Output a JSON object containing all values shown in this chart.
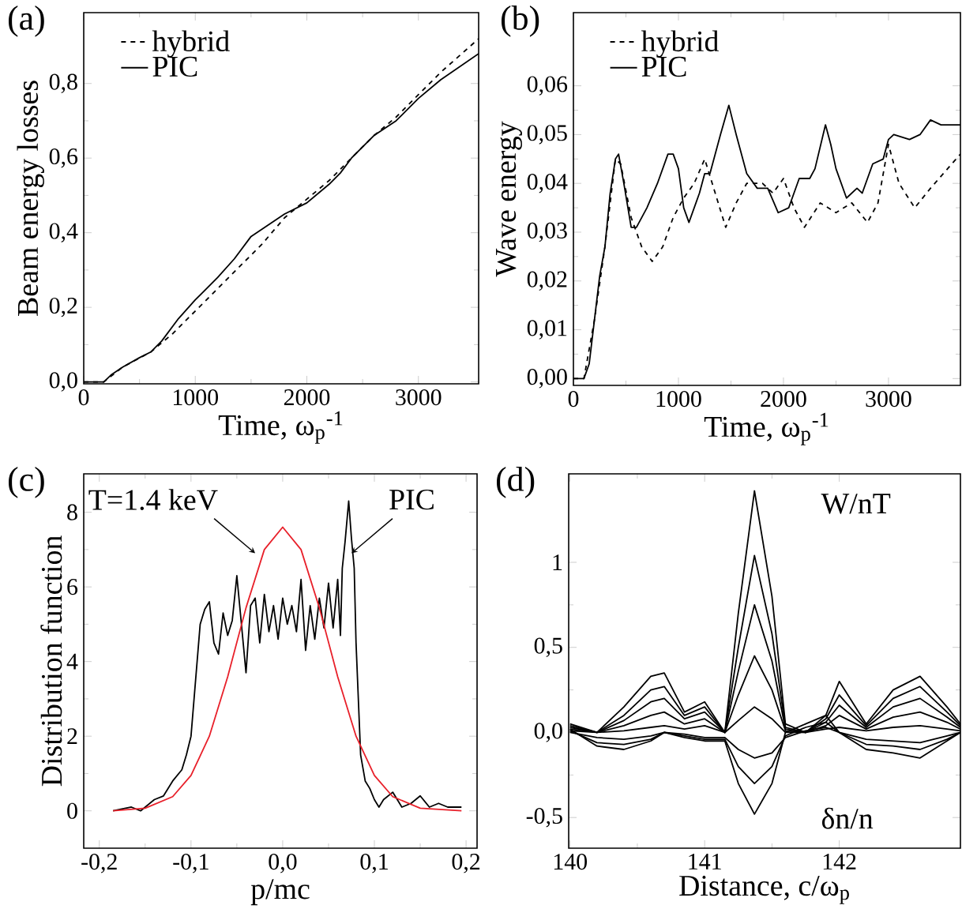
{
  "chart_data": [
    {
      "type": "line",
      "title": "(a)",
      "xlabel": "Time, ω$_{p}$$^{-1}$",
      "ylabel": "Beam energy losses",
      "xlim": [
        0,
        3540
      ],
      "ylim": [
        -0.005,
        0.99
      ],
      "xticks": [
        0,
        1000,
        2000,
        3000
      ],
      "yticks": [
        {
          "value": 0,
          "label": "0,0"
        },
        {
          "value": 0.2,
          "label": "0,2"
        },
        {
          "value": 0.4,
          "label": "0,4"
        },
        {
          "value": 0.6,
          "label": "0,6"
        },
        {
          "value": 0.8,
          "label": "0,8"
        }
      ],
      "legend": "top left",
      "series": [
        {
          "name": "hybrid",
          "color": "#000000",
          "line_style": "dashed",
          "x": [
            0,
            180,
            350,
            600,
            800,
            1000,
            1200,
            1400,
            1600,
            1800,
            2000,
            2200,
            2400,
            2600,
            2800,
            3000,
            3200,
            3540
          ],
          "values": [
            0,
            0,
            0.04,
            0.08,
            0.13,
            0.19,
            0.25,
            0.31,
            0.37,
            0.44,
            0.49,
            0.54,
            0.6,
            0.66,
            0.71,
            0.77,
            0.83,
            0.92
          ]
        },
        {
          "name": "PIC",
          "color": "#000000",
          "line_style": "solid",
          "x": [
            0,
            180,
            250,
            350,
            500,
            600,
            700,
            850,
            1000,
            1200,
            1350,
            1500,
            1600,
            1800,
            2000,
            2200,
            2300,
            2400,
            2600,
            2800,
            3000,
            3200,
            3540
          ],
          "values": [
            0,
            0,
            0.02,
            0.04,
            0.065,
            0.08,
            0.11,
            0.17,
            0.22,
            0.28,
            0.33,
            0.39,
            0.41,
            0.45,
            0.48,
            0.53,
            0.56,
            0.6,
            0.66,
            0.7,
            0.76,
            0.81,
            0.88
          ]
        }
      ]
    },
    {
      "type": "line",
      "title": "(b)",
      "xlabel": "Time, ω$_{p}$$^{-1}$",
      "ylabel": "Wave energy",
      "xlim": [
        0,
        3685
      ],
      "ylim": [
        -0.0014,
        0.075
      ],
      "xticks": [
        0,
        1000,
        2000,
        3000
      ],
      "yticks": [
        {
          "value": 0,
          "label": "0,00"
        },
        {
          "value": 0.01,
          "label": "0,01"
        },
        {
          "value": 0.02,
          "label": "0,02"
        },
        {
          "value": 0.03,
          "label": "0,03"
        },
        {
          "value": 0.04,
          "label": "0,04"
        },
        {
          "value": 0.05,
          "label": "0,05"
        },
        {
          "value": 0.06,
          "label": "0,06"
        }
      ],
      "legend": "top left",
      "series": [
        {
          "name": "hybrid",
          "color": "#000000",
          "line_style": "dashed",
          "x": [
            0,
            100,
            200,
            300,
            400,
            450,
            550,
            650,
            750,
            850,
            950,
            1050,
            1150,
            1250,
            1350,
            1450,
            1550,
            1650,
            1800,
            1900,
            2000,
            2100,
            2200,
            2350,
            2500,
            2650,
            2800,
            2900,
            3000,
            3100,
            3250,
            3400,
            3685
          ],
          "values": [
            0,
            0,
            0.012,
            0.027,
            0.045,
            0.044,
            0.033,
            0.027,
            0.024,
            0.027,
            0.033,
            0.037,
            0.04,
            0.045,
            0.038,
            0.031,
            0.036,
            0.04,
            0.04,
            0.038,
            0.041,
            0.035,
            0.031,
            0.036,
            0.034,
            0.036,
            0.032,
            0.036,
            0.048,
            0.04,
            0.035,
            0.039,
            0.046
          ]
        },
        {
          "name": "PIC",
          "color": "#000000",
          "line_style": "solid",
          "x": [
            0,
            100,
            150,
            200,
            250,
            300,
            350,
            400,
            430,
            480,
            550,
            600,
            700,
            800,
            900,
            950,
            1000,
            1050,
            1100,
            1200,
            1250,
            1300,
            1400,
            1480,
            1550,
            1650,
            1750,
            1850,
            1950,
            2050,
            2150,
            2250,
            2300,
            2400,
            2450,
            2500,
            2600,
            2700,
            2750,
            2850,
            2950,
            3000,
            3050,
            3200,
            3300,
            3400,
            3500,
            3685
          ],
          "values": [
            0,
            0,
            0.003,
            0.012,
            0.021,
            0.027,
            0.038,
            0.045,
            0.046,
            0.04,
            0.031,
            0.031,
            0.035,
            0.04,
            0.046,
            0.046,
            0.043,
            0.035,
            0.032,
            0.038,
            0.042,
            0.042,
            0.05,
            0.056,
            0.05,
            0.042,
            0.039,
            0.039,
            0.034,
            0.035,
            0.041,
            0.041,
            0.043,
            0.052,
            0.048,
            0.043,
            0.037,
            0.039,
            0.038,
            0.044,
            0.045,
            0.049,
            0.05,
            0.049,
            0.05,
            0.053,
            0.052,
            0.052
          ]
        }
      ]
    },
    {
      "type": "line",
      "title": "(c)",
      "xlabel": "p/mc",
      "ylabel": "Distribution function",
      "xlim": [
        -0.217,
        0.212
      ],
      "ylim": [
        -1,
        9.03
      ],
      "xticks": [
        {
          "value": -0.2,
          "label": "-0,2"
        },
        {
          "value": -0.1,
          "label": "-0,1"
        },
        {
          "value": 0,
          "label": "0,0"
        },
        {
          "value": 0.1,
          "label": "0,1"
        },
        {
          "value": 0.2,
          "label": "0,2"
        }
      ],
      "yticks": [
        0,
        2,
        4,
        6,
        8
      ],
      "annotations": [
        {
          "text": "T=1.4 keV",
          "x": -0.03,
          "y": 6.9
        },
        {
          "text": "PIC",
          "x": 0.075,
          "y": 6.9
        }
      ],
      "series": [
        {
          "color": "#000000",
          "line_style": "solid",
          "x": [
            -0.185,
            -0.165,
            -0.155,
            -0.14,
            -0.13,
            -0.12,
            -0.11,
            -0.105,
            -0.1,
            -0.095,
            -0.09,
            -0.085,
            -0.08,
            -0.075,
            -0.07,
            -0.065,
            -0.06,
            -0.055,
            -0.05,
            -0.045,
            -0.04,
            -0.035,
            -0.03,
            -0.025,
            -0.02,
            -0.015,
            -0.01,
            -0.005,
            0,
            0.005,
            0.01,
            0.015,
            0.02,
            0.025,
            0.03,
            0.035,
            0.04,
            0.045,
            0.05,
            0.055,
            0.06,
            0.063,
            0.065,
            0.068,
            0.072,
            0.075,
            0.078,
            0.08,
            0.085,
            0.09,
            0.095,
            0.1,
            0.105,
            0.11,
            0.12,
            0.13,
            0.14,
            0.15,
            0.16,
            0.17,
            0.18,
            0.195
          ],
          "values": [
            0,
            0.1,
            0,
            0.3,
            0.4,
            0.8,
            1.1,
            1.5,
            2,
            3.5,
            5,
            5.4,
            5.6,
            4.5,
            4.2,
            5.3,
            4.7,
            5.1,
            6.3,
            5,
            3.7,
            5.5,
            5.7,
            4.5,
            5.8,
            4.8,
            5.5,
            4.6,
            5.7,
            5,
            5.5,
            4.8,
            6.2,
            4.3,
            5.5,
            4.6,
            5.7,
            4.9,
            6.1,
            4.9,
            6.2,
            4.7,
            6.5,
            7.2,
            8.3,
            7.3,
            6.5,
            4.5,
            1.5,
            0.8,
            0.6,
            0.3,
            0.1,
            0.3,
            0.5,
            0.1,
            0.2,
            0.4,
            0.1,
            0.2,
            0.1,
            0.1
          ]
        },
        {
          "color": "#e8202a",
          "line_style": "solid",
          "x": [
            -0.185,
            -0.15,
            -0.12,
            -0.1,
            -0.08,
            -0.06,
            -0.04,
            -0.02,
            0,
            0.02,
            0.04,
            0.06,
            0.08,
            0.1,
            0.12,
            0.15,
            0.195
          ],
          "values": [
            0,
            0.07,
            0.38,
            0.95,
            2,
            3.59,
            5.44,
            7,
            7.6,
            7,
            5.44,
            3.59,
            2,
            0.95,
            0.38,
            0.07,
            0
          ]
        }
      ]
    },
    {
      "type": "line",
      "title": "(d)",
      "xlabel": "Distance, c/ω$_{p}$",
      "xlim": [
        139.99,
        142.9
      ],
      "ylim": [
        -0.68,
        1.52
      ],
      "xticks": [
        140,
        141,
        142
      ],
      "yticks": [
        {
          "value": -0.5,
          "label": "-0,5"
        },
        {
          "value": 0,
          "label": "0,0"
        },
        {
          "value": 0.5,
          "label": "0,5"
        },
        1
      ],
      "annotations": [
        "W/nT",
        "δn/n"
      ],
      "series": [
        {
          "color": "#000000",
          "line_style": "solid",
          "x": [
            140,
            140.2,
            140.4,
            140.6,
            140.7,
            140.85,
            141,
            141.15,
            141.25,
            141.37,
            141.5,
            141.6,
            141.75,
            141.9,
            142,
            142.2,
            142.4,
            142.6,
            142.8,
            142.9
          ],
          "values": [
            0.05,
            0,
            0.15,
            0.33,
            0.35,
            0.12,
            0.18,
            0,
            0.7,
            1.42,
            0.8,
            0.05,
            0,
            0.1,
            0.3,
            0.05,
            0.25,
            0.33,
            0.15,
            0.05
          ]
        },
        {
          "color": "#000000",
          "line_style": "solid",
          "x": [
            140,
            140.2,
            140.4,
            140.6,
            140.7,
            140.85,
            141,
            141.15,
            141.25,
            141.37,
            141.5,
            141.6,
            141.75,
            141.9,
            142,
            142.2,
            142.4,
            142.6,
            142.8,
            142.9
          ],
          "values": [
            0.04,
            0,
            0.1,
            0.25,
            0.27,
            0.1,
            0.15,
            0,
            0.5,
            1.04,
            0.58,
            0.03,
            0,
            0.08,
            0.22,
            0.04,
            0.2,
            0.27,
            0.12,
            0.04
          ]
        },
        {
          "color": "#000000",
          "line_style": "solid",
          "x": [
            140,
            140.2,
            140.4,
            140.6,
            140.7,
            140.85,
            141,
            141.15,
            141.25,
            141.37,
            141.5,
            141.6,
            141.75,
            141.9,
            142,
            142.2,
            142.4,
            142.6,
            142.8,
            142.9
          ],
          "values": [
            0.03,
            0,
            0.07,
            0.18,
            0.2,
            0.08,
            0.12,
            0,
            0.36,
            0.75,
            0.42,
            0.02,
            0,
            0.06,
            0.16,
            0.03,
            0.15,
            0.2,
            0.09,
            0.03
          ]
        },
        {
          "color": "#000000",
          "line_style": "solid",
          "x": [
            140,
            140.2,
            140.4,
            140.6,
            140.7,
            140.85,
            141,
            141.15,
            141.25,
            141.37,
            141.5,
            141.6,
            141.75,
            141.9,
            142,
            142.2,
            142.4,
            142.6,
            142.8,
            142.9
          ],
          "values": [
            0.02,
            0,
            0.04,
            0.1,
            0.12,
            0.05,
            0.08,
            0,
            0.22,
            0.45,
            0.25,
            0.01,
            0,
            0.04,
            0.1,
            0.02,
            0.09,
            0.12,
            0.06,
            0.02
          ]
        },
        {
          "color": "#000000",
          "line_style": "solid",
          "x": [
            140,
            140.2,
            140.4,
            140.6,
            140.7,
            140.85,
            141,
            141.15,
            141.25,
            141.37,
            141.5,
            141.6,
            141.75,
            141.9,
            142,
            142.2,
            142.4,
            142.6,
            142.8,
            142.9
          ],
          "values": [
            0.01,
            0,
            0.01,
            0.03,
            0.04,
            0.02,
            0.04,
            0,
            0.07,
            0.15,
            0.08,
            0,
            0,
            0.02,
            0.03,
            0.01,
            0.03,
            0.04,
            0.02,
            0.01
          ]
        },
        {
          "color": "#000000",
          "line_style": "solid",
          "x": [
            140,
            140.2,
            140.4,
            140.6,
            140.7,
            140.85,
            141,
            141.15,
            141.25,
            141.37,
            141.5,
            141.6,
            141.75,
            141.9,
            142,
            142.2,
            142.4,
            142.6,
            142.8,
            142.9
          ],
          "values": [
            0.02,
            -0.08,
            -0.1,
            -0.05,
            0,
            -0.03,
            -0.05,
            -0.05,
            -0.3,
            -0.48,
            -0.3,
            0,
            0.05,
            0.1,
            0,
            -0.1,
            -0.12,
            -0.15,
            -0.05,
            0
          ]
        },
        {
          "color": "#000000",
          "line_style": "solid",
          "x": [
            140,
            140.2,
            140.4,
            140.6,
            140.7,
            140.85,
            141,
            141.15,
            141.25,
            141.37,
            141.5,
            141.6,
            141.75,
            141.9,
            142,
            142.2,
            142.4,
            142.6,
            142.8,
            142.9
          ],
          "values": [
            0.01,
            -0.06,
            -0.07,
            -0.04,
            0,
            -0.02,
            -0.04,
            -0.04,
            -0.2,
            -0.3,
            -0.2,
            -0.02,
            0.03,
            0.06,
            0,
            -0.07,
            -0.08,
            -0.1,
            -0.04,
            0
          ]
        },
        {
          "color": "#000000",
          "line_style": "solid",
          "x": [
            140,
            140.2,
            140.4,
            140.6,
            140.7,
            140.85,
            141,
            141.15,
            141.25,
            141.37,
            141.5,
            141.6,
            141.75,
            141.9,
            142,
            142.2,
            142.4,
            142.6,
            142.8,
            142.9
          ],
          "values": [
            0,
            -0.03,
            -0.04,
            -0.02,
            0,
            -0.01,
            -0.03,
            -0.03,
            -0.1,
            -0.15,
            -0.12,
            -0.03,
            0.01,
            0.03,
            0,
            -0.04,
            -0.05,
            -0.06,
            -0.02,
            0
          ]
        }
      ]
    }
  ]
}
